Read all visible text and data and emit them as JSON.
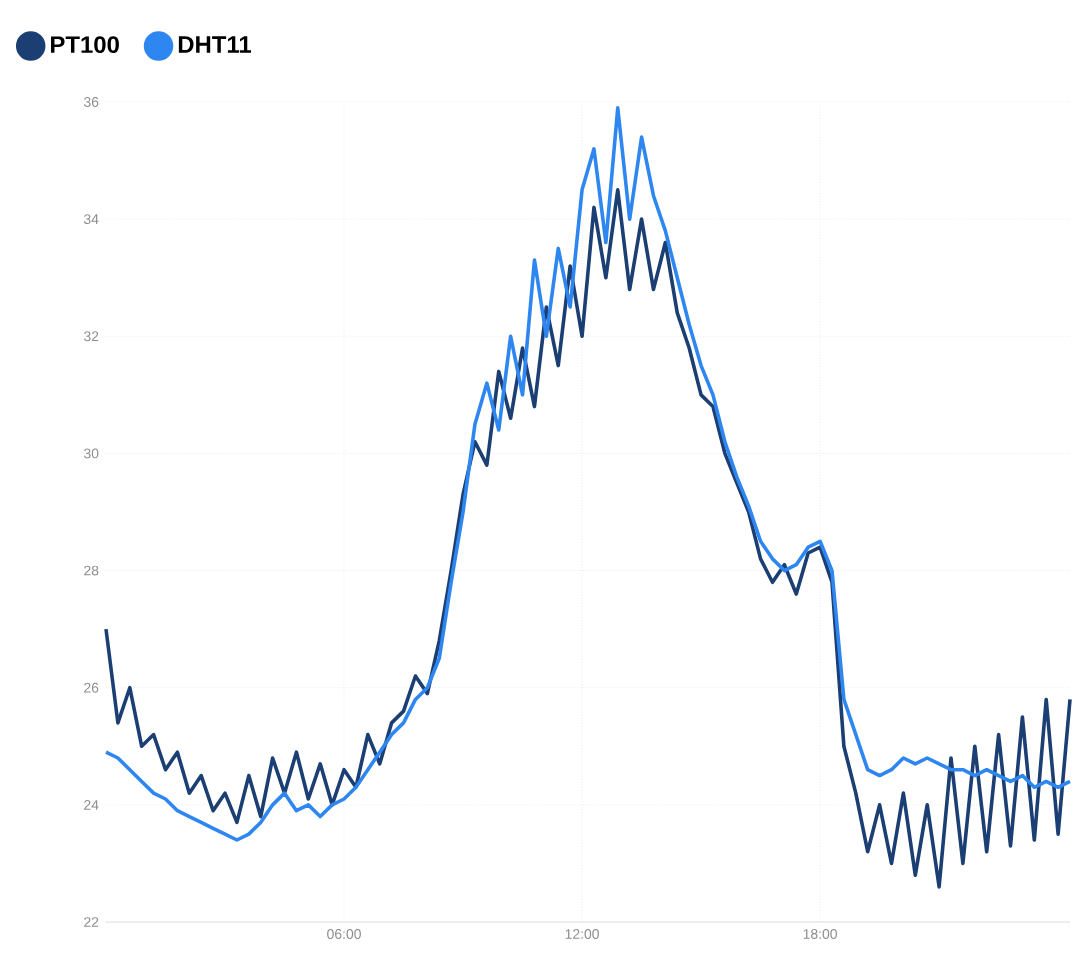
{
  "chart_data": {
    "type": "line",
    "x": [
      0,
      0.3,
      0.6,
      0.9,
      1.2,
      1.5,
      1.8,
      2.1,
      2.4,
      2.7,
      3,
      3.3,
      3.6,
      3.9,
      4.2,
      4.5,
      4.8,
      5.1,
      5.4,
      5.7,
      6,
      6.3,
      6.6,
      6.9,
      7.2,
      7.5,
      7.8,
      8.1,
      8.4,
      8.7,
      9,
      9.3,
      9.6,
      9.9,
      10.2,
      10.5,
      10.8,
      11.1,
      11.4,
      11.7,
      12,
      12.3,
      12.6,
      12.9,
      13.2,
      13.5,
      13.8,
      14.1,
      14.4,
      14.7,
      15,
      15.3,
      15.6,
      15.9,
      16.2,
      16.5,
      16.8,
      17.1,
      17.4,
      17.7,
      18,
      18.3,
      18.6,
      18.9,
      19.2,
      19.5,
      19.8,
      20.1,
      20.4,
      20.7,
      21,
      21.3,
      21.6,
      21.9,
      22.2,
      22.5,
      22.8,
      23.1,
      23.4,
      23.7,
      24,
      24.3
    ],
    "series": [
      {
        "name": "PT100",
        "color": "#1b3f73",
        "values": [
          27.0,
          25.4,
          26.0,
          25.0,
          25.2,
          24.6,
          24.9,
          24.2,
          24.5,
          23.9,
          24.2,
          23.7,
          24.5,
          23.8,
          24.8,
          24.2,
          24.9,
          24.1,
          24.7,
          24.0,
          24.6,
          24.3,
          25.2,
          24.7,
          25.4,
          25.6,
          26.2,
          25.9,
          26.8,
          28.0,
          29.3,
          30.2,
          29.8,
          31.4,
          30.6,
          31.8,
          30.8,
          32.5,
          31.5,
          33.2,
          32.0,
          34.2,
          33.0,
          34.5,
          32.8,
          34.0,
          32.8,
          33.6,
          32.4,
          31.8,
          31.0,
          30.8,
          30.0,
          29.5,
          29.0,
          28.2,
          27.8,
          28.1,
          27.6,
          28.3,
          28.4,
          27.8,
          25.0,
          24.2,
          23.2,
          24.0,
          23.0,
          24.2,
          22.8,
          24.0,
          22.6,
          24.8,
          23.0,
          25.0,
          23.2,
          25.2,
          23.3,
          25.5,
          23.4,
          25.8,
          23.5,
          25.8
        ]
      },
      {
        "name": "DHT11",
        "color": "#2e86f0",
        "values": [
          24.9,
          24.8,
          24.6,
          24.4,
          24.2,
          24.1,
          23.9,
          23.8,
          23.7,
          23.6,
          23.5,
          23.4,
          23.5,
          23.7,
          24.0,
          24.2,
          23.9,
          24.0,
          23.8,
          24.0,
          24.1,
          24.3,
          24.6,
          24.9,
          25.2,
          25.4,
          25.8,
          26.0,
          26.5,
          27.8,
          29.0,
          30.5,
          31.2,
          30.4,
          32.0,
          31.0,
          33.3,
          32.0,
          33.5,
          32.5,
          34.5,
          35.2,
          33.6,
          35.9,
          34.0,
          35.4,
          34.4,
          33.8,
          33.0,
          32.2,
          31.5,
          31.0,
          30.2,
          29.6,
          29.1,
          28.5,
          28.2,
          28.0,
          28.1,
          28.4,
          28.5,
          28.0,
          25.8,
          25.2,
          24.6,
          24.5,
          24.6,
          24.8,
          24.7,
          24.8,
          24.7,
          24.6,
          24.6,
          24.5,
          24.6,
          24.5,
          24.4,
          24.5,
          24.3,
          24.4,
          24.3,
          24.4
        ]
      }
    ],
    "xlim": [
      0,
      24.3
    ],
    "ylim": [
      22,
      36
    ],
    "xticks": [
      {
        "value": 6,
        "label": "06:00"
      },
      {
        "value": 12,
        "label": "12:00"
      },
      {
        "value": 18,
        "label": "18:00"
      }
    ],
    "yticks": [
      22,
      24,
      26,
      28,
      30,
      32,
      34,
      36
    ],
    "grid": true,
    "legend": "top left"
  }
}
